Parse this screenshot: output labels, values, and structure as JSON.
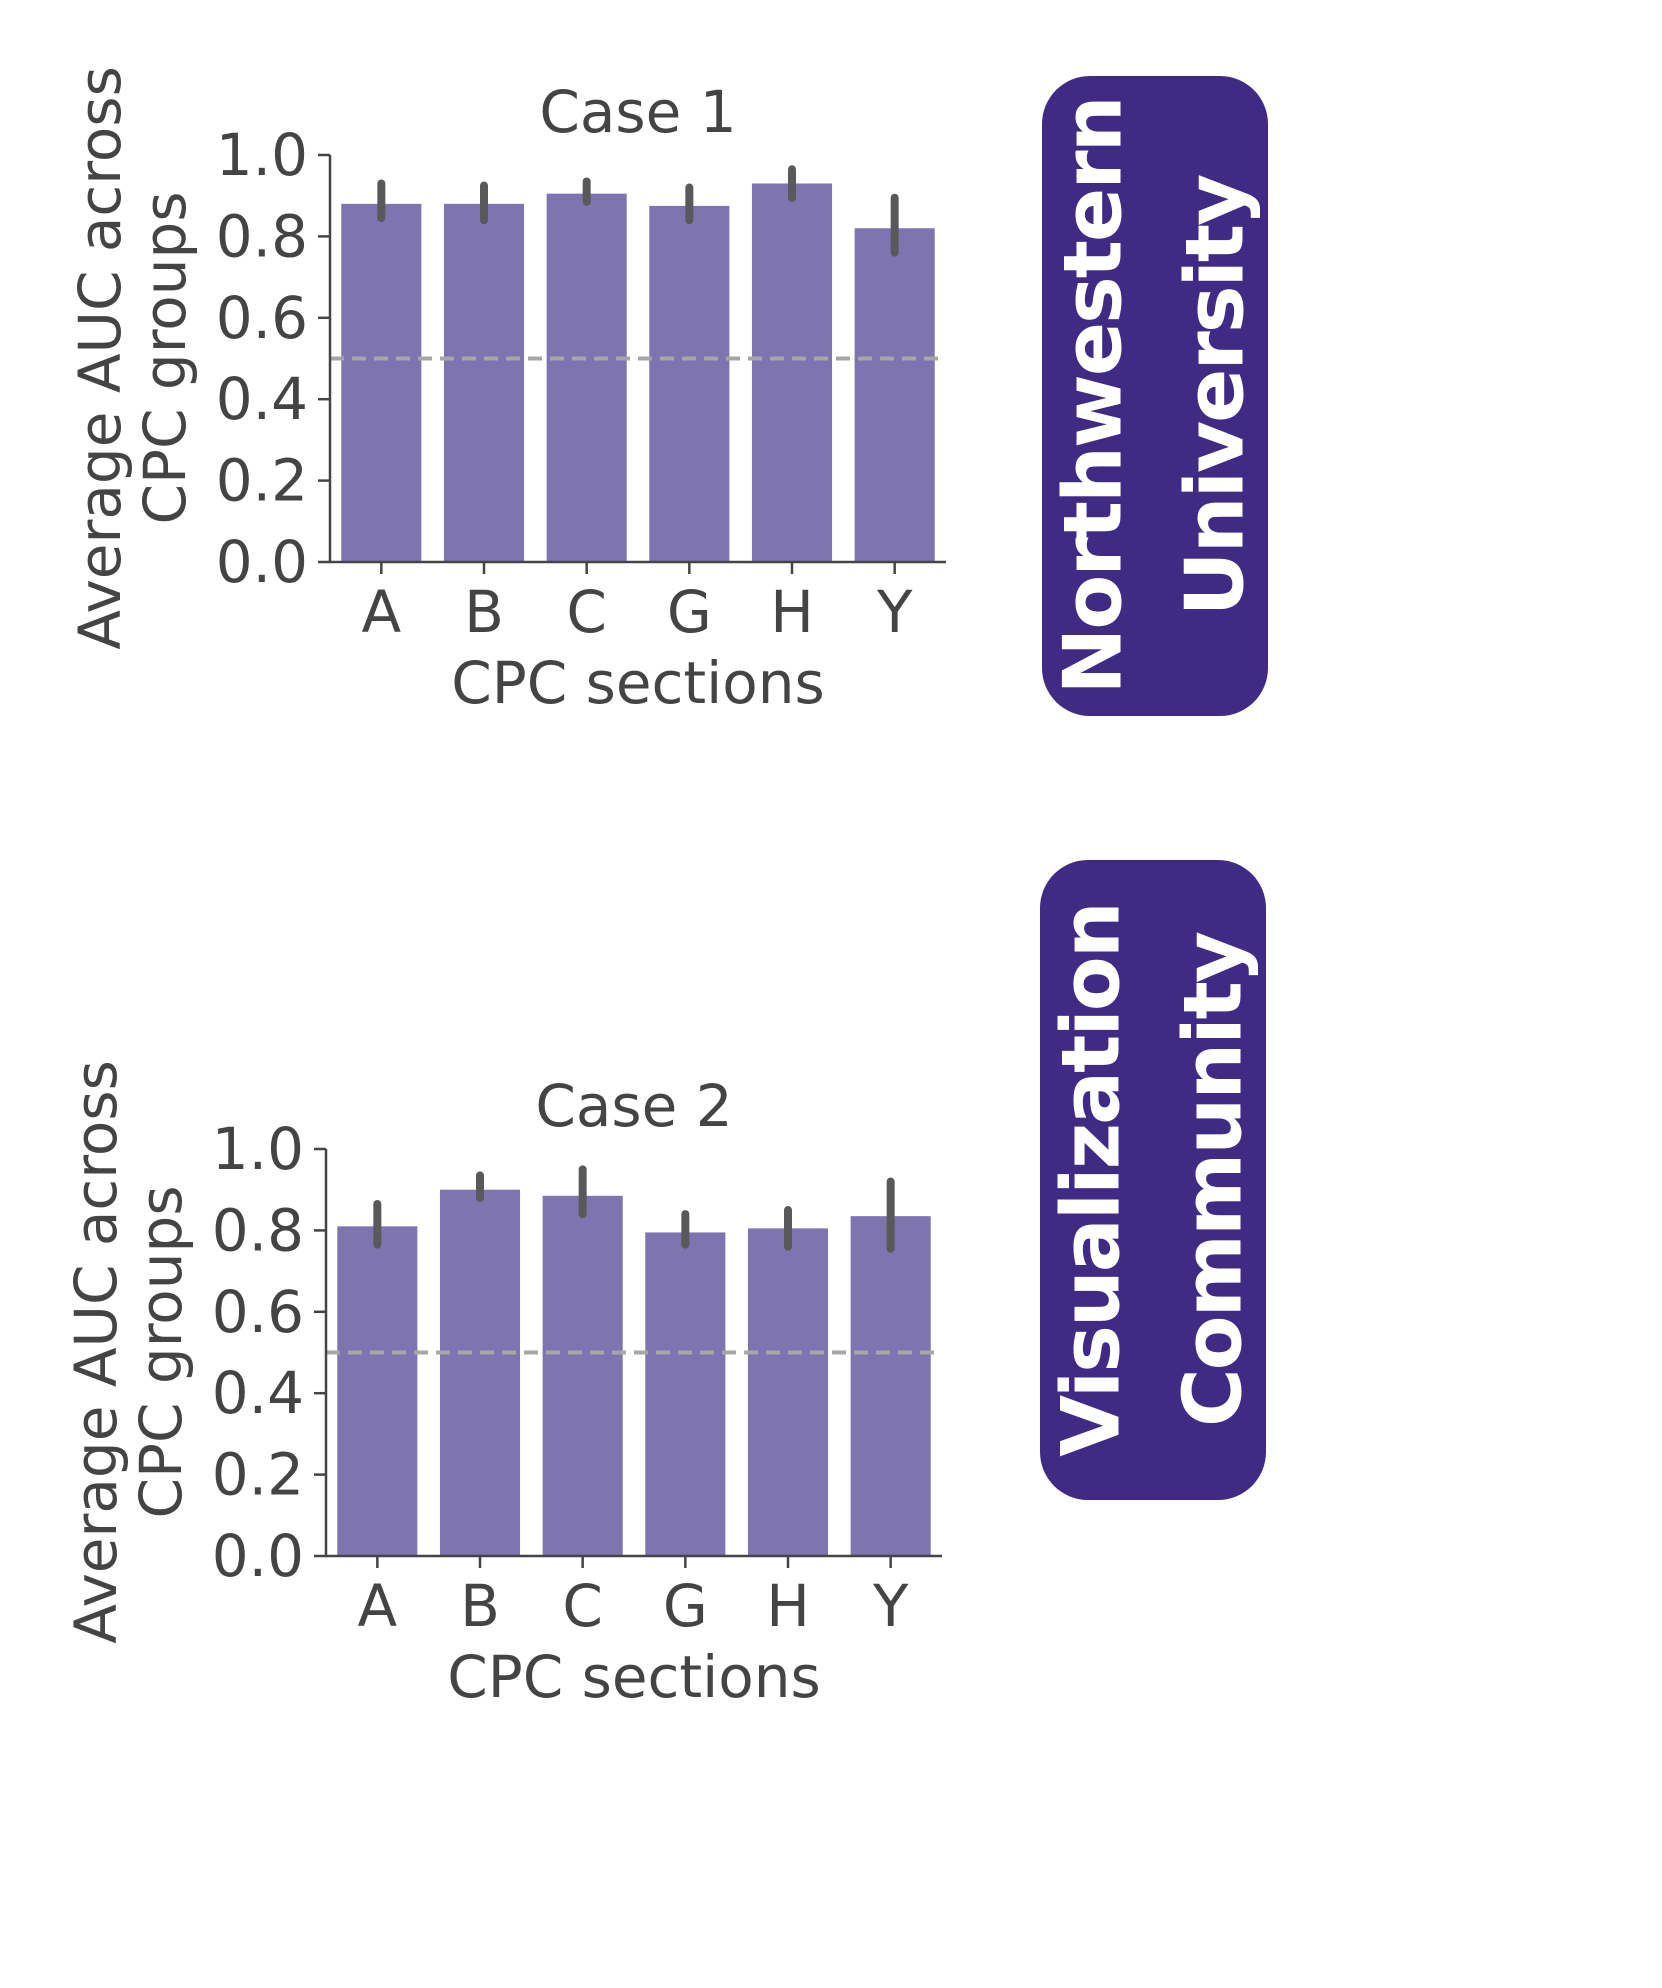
{
  "colors": {
    "bar": "#7e74b0",
    "error_bar": "#595959",
    "reference_line": "#a6a6a6",
    "axis": "#444444",
    "badge_background": "#3f2b84",
    "badge_text": "#ffffff"
  },
  "chart_data": [
    {
      "type": "bar",
      "title": "Case 1",
      "xlabel": "CPC sections",
      "ylabel_lines": [
        "Average AUC across",
        "CPC groups"
      ],
      "categories": [
        "A",
        "B",
        "C",
        "G",
        "H",
        "Y"
      ],
      "values": [
        0.88,
        0.88,
        0.905,
        0.875,
        0.93,
        0.82
      ],
      "error_low": [
        0.845,
        0.84,
        0.885,
        0.84,
        0.895,
        0.76
      ],
      "error_high": [
        0.93,
        0.925,
        0.935,
        0.92,
        0.965,
        0.895
      ],
      "reference_line": 0.5,
      "ylim": [
        0,
        1.0
      ],
      "yticks": [
        "0.0",
        "0.2",
        "0.4",
        "0.6",
        "0.8",
        "1.0"
      ],
      "grid": false
    },
    {
      "type": "bar",
      "title": "Case 2",
      "xlabel": "CPC sections",
      "ylabel_lines": [
        "Average AUC across",
        "CPC groups"
      ],
      "categories": [
        "A",
        "B",
        "C",
        "G",
        "H",
        "Y"
      ],
      "values": [
        0.81,
        0.9,
        0.885,
        0.795,
        0.805,
        0.835
      ],
      "error_low": [
        0.765,
        0.88,
        0.84,
        0.765,
        0.76,
        0.755
      ],
      "error_high": [
        0.865,
        0.935,
        0.95,
        0.84,
        0.85,
        0.92
      ],
      "reference_line": 0.5,
      "ylim": [
        0,
        1.0
      ],
      "yticks": [
        "0.0",
        "0.2",
        "0.4",
        "0.6",
        "0.8",
        "1.0"
      ],
      "grid": false
    }
  ],
  "badges": [
    {
      "lines": [
        "Northwestern",
        "University"
      ]
    },
    {
      "lines": [
        "Visualization",
        "Community"
      ]
    }
  ]
}
